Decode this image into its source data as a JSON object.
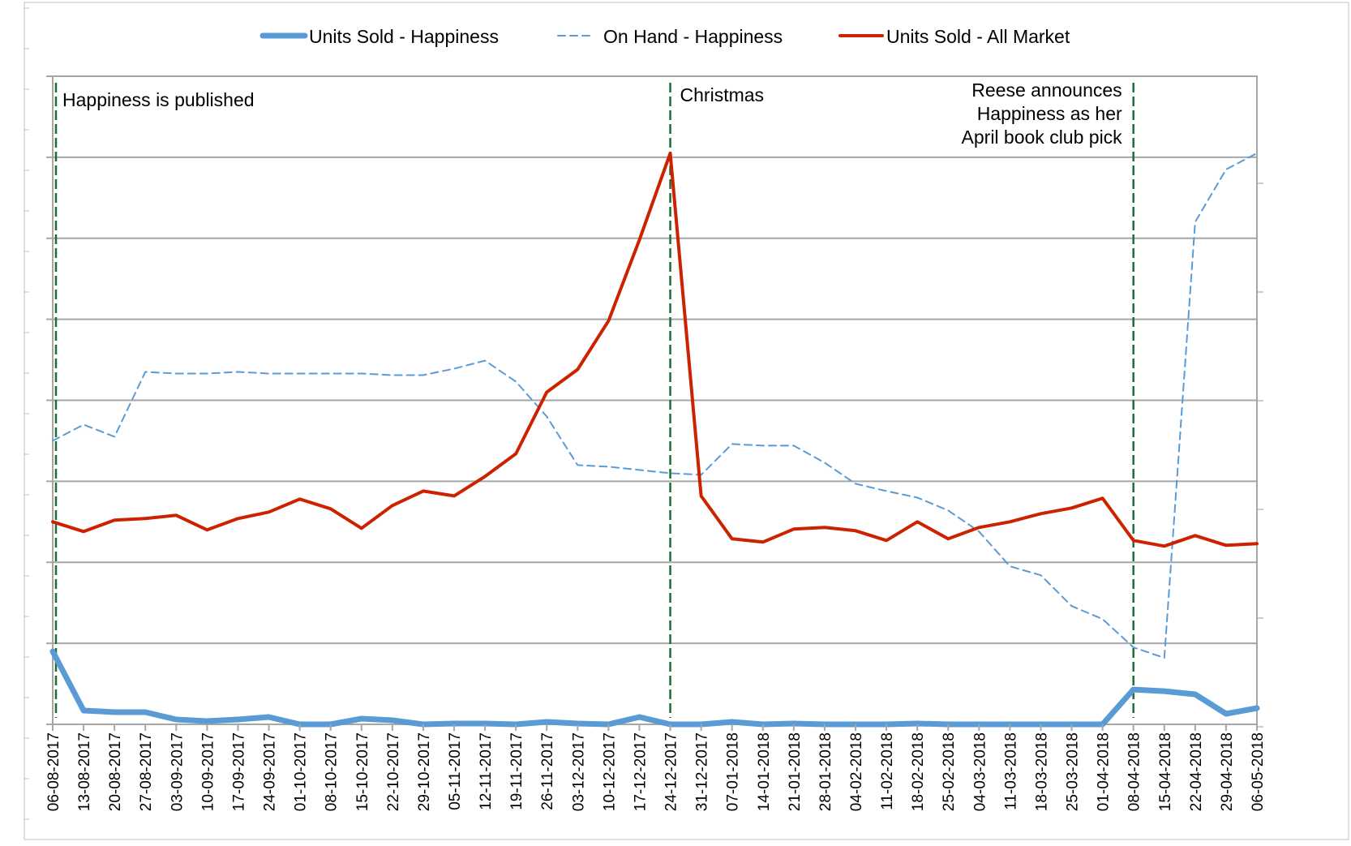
{
  "chart_data": {
    "type": "line",
    "title": "",
    "xlabel": "",
    "ylabel": "",
    "grid": true,
    "legend_position": "top",
    "y_tick_labels_visible": false,
    "ylim": [
      0,
      8
    ],
    "x": [
      "06-08-2017",
      "13-08-2017",
      "20-08-2017",
      "27-08-2017",
      "03-09-2017",
      "10-09-2017",
      "17-09-2017",
      "24-09-2017",
      "01-10-2017",
      "08-10-2017",
      "15-10-2017",
      "22-10-2017",
      "29-10-2017",
      "05-11-2017",
      "12-11-2017",
      "19-11-2017",
      "26-11-2017",
      "03-12-2017",
      "10-12-2017",
      "17-12-2017",
      "24-12-2017",
      "31-12-2017",
      "07-01-2018",
      "14-01-2018",
      "21-01-2018",
      "28-01-2018",
      "04-02-2018",
      "11-02-2018",
      "18-02-2018",
      "25-02-2018",
      "04-03-2018",
      "11-03-2018",
      "18-03-2018",
      "25-03-2018",
      "01-04-2018",
      "08-04-2018",
      "15-04-2018",
      "22-04-2018",
      "29-04-2018",
      "06-05-2018"
    ],
    "series": [
      {
        "name": "Units Sold - Happiness",
        "color": "#5b9bd5",
        "style": "solid-thick",
        "values": [
          0.9,
          0.17,
          0.15,
          0.15,
          0.06,
          0.04,
          0.06,
          0.09,
          0.0,
          0.0,
          0.07,
          0.05,
          0.0,
          0.01,
          0.01,
          0.0,
          0.03,
          0.01,
          0.0,
          0.09,
          0.0,
          0.0,
          0.03,
          0.0,
          0.01,
          0.0,
          0.0,
          0.0,
          0.01,
          0.0,
          0.0,
          0.0,
          0.0,
          0.0,
          0.0,
          0.43,
          0.41,
          0.37,
          0.13,
          0.2
        ]
      },
      {
        "name": "On Hand - Happiness",
        "color": "#5b9bd5",
        "style": "dashed-thin",
        "values": [
          3.5,
          3.7,
          3.55,
          4.35,
          4.33,
          4.33,
          4.35,
          4.33,
          4.33,
          4.33,
          4.33,
          4.31,
          4.31,
          4.39,
          4.49,
          4.23,
          3.8,
          3.2,
          3.18,
          3.14,
          3.1,
          3.08,
          3.46,
          3.44,
          3.44,
          3.23,
          2.97,
          2.88,
          2.8,
          2.64,
          2.38,
          1.95,
          1.84,
          1.46,
          1.3,
          0.95,
          0.82,
          6.2,
          6.85,
          7.05
        ]
      },
      {
        "name": "Units Sold - All Market",
        "color": "#cc2200",
        "style": "solid",
        "values": [
          2.5,
          2.38,
          2.52,
          2.54,
          2.58,
          2.4,
          2.54,
          2.62,
          2.78,
          2.66,
          2.42,
          2.7,
          2.88,
          2.82,
          3.06,
          3.34,
          4.1,
          4.38,
          4.98,
          5.98,
          7.05,
          2.82,
          2.29,
          2.25,
          2.41,
          2.43,
          2.39,
          2.27,
          2.5,
          2.29,
          2.43,
          2.5,
          2.6,
          2.67,
          2.79,
          2.27,
          2.2,
          2.33,
          2.21,
          2.23
        ]
      }
    ],
    "annotations": [
      {
        "x": "06-08-2017",
        "lines": [
          "Happiness is published"
        ],
        "align": "left"
      },
      {
        "x": "24-12-2017",
        "lines": [
          "Christmas"
        ],
        "align": "left"
      },
      {
        "x": "08-04-2018",
        "lines": [
          "Reese announces",
          "Happiness as her",
          "April book club pick"
        ],
        "align": "right"
      }
    ]
  }
}
